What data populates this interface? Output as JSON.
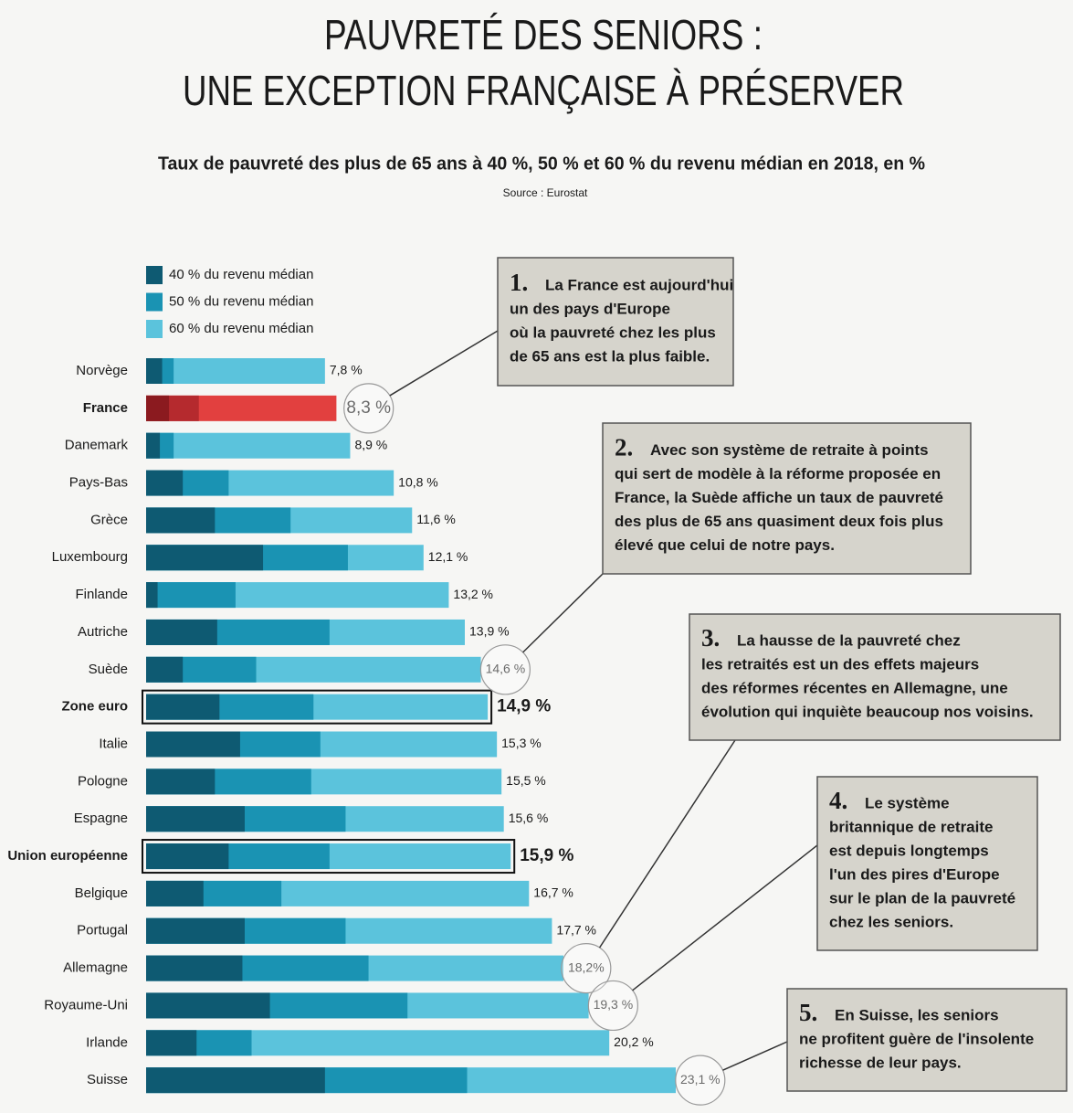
{
  "chart_data": {
    "type": "bar",
    "orientation": "horizontal",
    "title": [
      "PAUVRETÉ DES SENIORS :",
      "UNE EXCEPTION FRANÇAISE À PRÉSERVER"
    ],
    "subtitle": "Taux de pauvreté des plus de 65 ans à 40 %, 50 % et 60 % du revenu médian en 2018, en %",
    "source": "Source : Eurostat",
    "categories": [
      "Norvège",
      "France",
      "Danemark",
      "Pays-Bas",
      "Grèce",
      "Luxembourg",
      "Finlande",
      "Autriche",
      "Suède",
      "Zone euro",
      "Italie",
      "Pologne",
      "Espagne",
      "Union européenne",
      "Belgique",
      "Portugal",
      "Allemagne",
      "Royaume-Uni",
      "Irlande",
      "Suisse"
    ],
    "series": [
      {
        "name": "40 % du revenu médian",
        "color": "#0e5a72",
        "values": [
          0.7,
          1.0,
          0.6,
          1.6,
          3.0,
          5.1,
          0.5,
          3.1,
          1.6,
          3.2,
          4.1,
          3.0,
          4.3,
          3.6,
          2.5,
          4.3,
          4.2,
          5.4,
          2.2,
          7.8
        ]
      },
      {
        "name": "50 % du revenu médian",
        "color": "#1a93b3",
        "values": [
          1.2,
          2.3,
          1.2,
          3.6,
          6.3,
          8.8,
          3.9,
          8.0,
          4.8,
          7.3,
          7.6,
          7.2,
          8.7,
          8.0,
          5.9,
          8.7,
          9.7,
          11.4,
          4.6,
          14.0
        ]
      },
      {
        "name": "60 % du revenu médian",
        "color": "#5bc3dc",
        "values": [
          7.8,
          8.3,
          8.9,
          10.8,
          11.6,
          12.1,
          13.2,
          13.9,
          14.6,
          14.9,
          15.3,
          15.5,
          15.6,
          15.9,
          16.7,
          17.7,
          18.2,
          19.3,
          20.2,
          23.1
        ],
        "value_labels": [
          "7,8 %",
          "8,3 %",
          "8,9 %",
          "10,8 %",
          "11,6 %",
          "12,1 %",
          "13,2 %",
          "13,9 %",
          "14,6 %",
          "14,9 %",
          "15,3 %",
          "15,5 %",
          "15,6 %",
          "15,9 %",
          "16,7 %",
          "17,7 %",
          "18,2%",
          "19,3 %",
          "20,2 %",
          "23,1 %"
        ]
      }
    ],
    "highlight_category": "France",
    "highlight_colors": [
      "#8b1a1f",
      "#b52a2e",
      "#e2403f"
    ],
    "boxed_categories": [
      "Zone euro",
      "Union européenne"
    ],
    "annotations": [
      {
        "number": "1.",
        "target": "France",
        "lines": [
          "La France est aujourd'hui",
          "un des pays d'Europe",
          "où la pauvreté chez les plus",
          "de 65 ans est la plus faible."
        ]
      },
      {
        "number": "2.",
        "target": "Suède",
        "lines": [
          "Avec son système de retraite à points",
          "qui sert de modèle à la réforme proposée en",
          "France, la Suède affiche un taux de pauvreté",
          "des plus de 65 ans quasiment deux fois plus",
          "élevé que celui de notre pays."
        ]
      },
      {
        "number": "3.",
        "target": "Allemagne",
        "lines": [
          "La hausse de la pauvreté chez",
          "les retraités est un des effets majeurs",
          "des réformes récentes en Allemagne, une",
          "évolution qui inquiète beaucoup nos voisins."
        ]
      },
      {
        "number": "4.",
        "target": "Royaume-Uni",
        "lines": [
          "Le système",
          "britannique de retraite",
          "est depuis longtemps",
          "l'un des pires d'Europe",
          "sur le plan de la pauvreté",
          "chez les seniors."
        ]
      },
      {
        "number": "5.",
        "target": "Suisse",
        "lines": [
          "En Suisse, les seniors",
          "ne profitent guère de l'insolente",
          "richesse de leur pays."
        ]
      }
    ]
  }
}
